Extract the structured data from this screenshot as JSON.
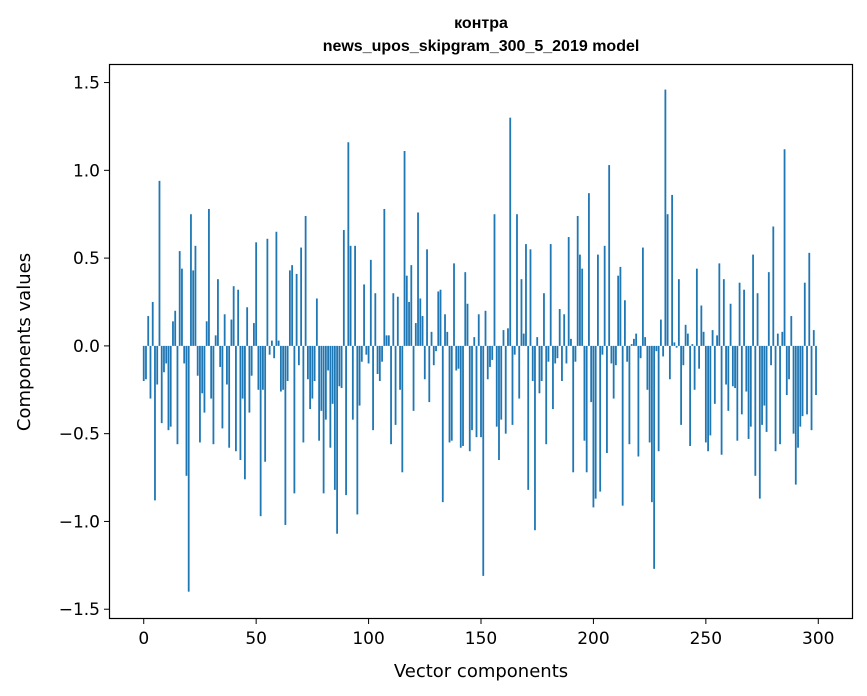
{
  "chart_data": {
    "type": "bar",
    "title": "контра",
    "subtitle": "news_upos_skipgram_300_5_2019 model",
    "xlabel": "Vector components",
    "ylabel": "Components values",
    "xlim": [
      -15,
      315
    ],
    "ylim": [
      -1.55,
      1.6
    ],
    "xticks": [
      0,
      50,
      100,
      150,
      200,
      250,
      300
    ],
    "xtick_labels": [
      "0",
      "50",
      "100",
      "150",
      "200",
      "250",
      "300"
    ],
    "yticks": [
      -1.5,
      -1.0,
      -0.5,
      0.0,
      0.5,
      1.0,
      1.5
    ],
    "ytick_labels": [
      "−1.5",
      "−1.0",
      "−0.5",
      "0.0",
      "0.5",
      "1.0",
      "1.5"
    ],
    "grid": false,
    "bar_color": "#1f77b4",
    "series": [
      {
        "values": [
          -0.2,
          -0.19,
          0.17,
          -0.3,
          0.25,
          -0.88,
          -0.22,
          0.94,
          -0.44,
          -0.15,
          -0.1,
          -0.48,
          -0.46,
          0.14,
          0.2,
          -0.56,
          0.54,
          0.44,
          -0.1,
          -0.74,
          -1.4,
          0.75,
          0.43,
          0.57,
          -0.17,
          -0.55,
          -0.27,
          -0.38,
          0.14,
          0.78,
          -0.3,
          -0.56,
          0.06,
          0.38,
          -0.12,
          -0.47,
          0.18,
          -0.22,
          -0.58,
          0.15,
          0.34,
          -0.6,
          0.32,
          -0.65,
          -0.3,
          -0.76,
          0.22,
          -0.38,
          -0.17,
          0.13,
          0.59,
          -0.25,
          -0.97,
          -0.25,
          -0.66,
          0.61,
          -0.05,
          0.03,
          -0.07,
          0.65,
          0.03,
          -0.26,
          -0.25,
          -1.02,
          -0.2,
          0.43,
          0.46,
          -0.84,
          0.41,
          -0.11,
          0.56,
          -0.55,
          0.74,
          -0.19,
          -0.36,
          -0.3,
          -0.2,
          0.27,
          -0.54,
          -0.37,
          -0.84,
          -0.42,
          -0.14,
          -0.58,
          -0.33,
          -0.82,
          -1.07,
          -0.23,
          -0.24,
          0.66,
          -0.85,
          1.16,
          0.57,
          -0.42,
          0.57,
          -0.96,
          -0.34,
          -0.09,
          0.35,
          -0.05,
          -0.1,
          0.49,
          -0.48,
          0.3,
          -0.16,
          -0.2,
          -0.09,
          0.78,
          0.06,
          0.06,
          -0.56,
          0.3,
          -0.45,
          0.28,
          -0.25,
          -0.72,
          1.11,
          0.4,
          0.25,
          0.46,
          -0.37,
          0.13,
          0.76,
          0.27,
          0.17,
          -0.19,
          0.55,
          -0.32,
          0.08,
          -0.11,
          -0.03,
          0.31,
          0.32,
          -0.89,
          0.18,
          0.08,
          -0.55,
          -0.54,
          0.47,
          -0.14,
          -0.13,
          -0.58,
          -0.57,
          0.42,
          0.24,
          -0.6,
          -0.48,
          0.05,
          -0.52,
          0.18,
          -0.52,
          -1.31,
          0.2,
          -0.19,
          -0.12,
          -0.08,
          0.75,
          -0.46,
          -0.65,
          -0.42,
          0.09,
          -0.5,
          0.1,
          1.3,
          -0.45,
          -0.05,
          0.75,
          -0.3,
          0.38,
          0.07,
          0.58,
          -0.82,
          0.55,
          -0.2,
          -1.05,
          0.05,
          -0.27,
          -0.2,
          0.3,
          -0.56,
          -0.09,
          0.58,
          -0.36,
          -0.1,
          -0.07,
          0.21,
          -0.2,
          0.18,
          -0.1,
          0.62,
          0.04,
          -0.72,
          -0.09,
          0.74,
          0.52,
          0.44,
          -0.54,
          -0.72,
          0.87,
          -0.32,
          -0.92,
          -0.87,
          0.52,
          -0.83,
          -0.05,
          0.57,
          -0.61,
          1.03,
          -0.1,
          -0.3,
          -0.11,
          0.4,
          0.45,
          -0.91,
          0.26,
          -0.09,
          -0.56,
          0.01,
          0.04,
          0.07,
          -0.63,
          -0.07,
          0.56,
          0.05,
          -0.25,
          -0.55,
          -0.89,
          -1.27,
          -0.03,
          -0.6,
          0.15,
          -0.06,
          1.46,
          0.75,
          -0.19,
          0.86,
          0.02,
          -0.01,
          0.38,
          -0.45,
          -0.11,
          0.12,
          0.07,
          -0.57,
          0.01,
          -0.25,
          0.44,
          -0.13,
          0.23,
          0.08,
          -0.55,
          -0.6,
          -0.51,
          0.09,
          -0.33,
          0.06,
          0.47,
          -0.62,
          0.38,
          -0.22,
          -0.37,
          0.24,
          -0.23,
          -0.24,
          -0.54,
          0.36,
          -0.39,
          0.32,
          -0.26,
          -0.53,
          -0.46,
          0.52,
          -0.74,
          0.3,
          -0.87,
          -0.45,
          -0.34,
          -0.49,
          0.42,
          -0.11,
          0.68,
          -0.6,
          0.07,
          -0.56,
          0.08,
          1.12,
          -0.28,
          -0.19,
          0.17,
          -0.5,
          -0.79,
          -0.58,
          -0.46,
          -0.4,
          0.36,
          -0.39,
          0.53,
          -0.48,
          0.09,
          -0.28
        ]
      }
    ]
  }
}
